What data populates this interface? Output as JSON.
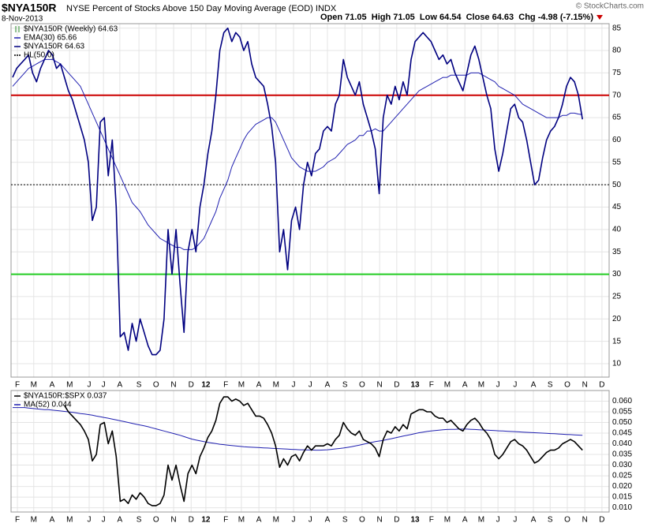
{
  "header": {
    "symbol": "$NYA150R",
    "description": "NYSE Percent of Stocks Above 150 Day Moving Average (EOD) INDX",
    "date": "8-Nov-2013",
    "quote": "Open 71.05  High 71.05  Low 64.54  Close 64.63  Chg -4.98 (-7.15%)",
    "credit": "© StockCharts.com"
  },
  "chart_data": [
    {
      "type": "line",
      "legend_header": "$NYA150R (Weekly) 64.63",
      "legend": "upper left",
      "grid": true,
      "xlim": [
        -0.4,
        149.7
      ],
      "xticks": [
        {
          "value": 1.2,
          "label": "F"
        },
        {
          "value": 5.3,
          "label": "M"
        },
        {
          "value": 9.9,
          "label": "A"
        },
        {
          "value": 14.3,
          "label": "M"
        },
        {
          "value": 19.2,
          "label": "J"
        },
        {
          "value": 22.8,
          "label": "J"
        },
        {
          "value": 26.9,
          "label": "A"
        },
        {
          "value": 31.7,
          "label": "S"
        },
        {
          "value": 36,
          "label": "O"
        },
        {
          "value": 40.4,
          "label": "N"
        },
        {
          "value": 44.8,
          "label": "D"
        },
        {
          "value": 48.5,
          "label": "12"
        },
        {
          "value": 53.5,
          "label": "F"
        },
        {
          "value": 57.4,
          "label": "M"
        },
        {
          "value": 61.8,
          "label": "A"
        },
        {
          "value": 66.1,
          "label": "M"
        },
        {
          "value": 70.5,
          "label": "J"
        },
        {
          "value": 74.7,
          "label": "J"
        },
        {
          "value": 79,
          "label": "A"
        },
        {
          "value": 83.4,
          "label": "S"
        },
        {
          "value": 87.7,
          "label": "O"
        },
        {
          "value": 92.1,
          "label": "N"
        },
        {
          "value": 96.4,
          "label": "D"
        },
        {
          "value": 101,
          "label": "13"
        },
        {
          "value": 105.1,
          "label": "F"
        },
        {
          "value": 109.1,
          "label": "M"
        },
        {
          "value": 113.5,
          "label": "A"
        },
        {
          "value": 117.6,
          "label": "M"
        },
        {
          "value": 121.8,
          "label": "J"
        },
        {
          "value": 126.1,
          "label": "J"
        },
        {
          "value": 130.7,
          "label": "A"
        },
        {
          "value": 134.9,
          "label": "S"
        },
        {
          "value": 139.2,
          "label": "O"
        },
        {
          "value": 143.6,
          "label": "N"
        },
        {
          "value": 147.9,
          "label": "D"
        }
      ],
      "ylim": [
        7,
        86
      ],
      "yticks": [
        10,
        15,
        20,
        25,
        30,
        35,
        40,
        45,
        50,
        55,
        60,
        65,
        70,
        75,
        80,
        85
      ],
      "hlines": [
        {
          "value": 70,
          "color": "#cc0000"
        },
        {
          "name": "HL(50.0)",
          "value": 50,
          "color": "#000000"
        },
        {
          "value": 30,
          "color": "#22cc22"
        }
      ],
      "series": [
        {
          "name": "$NYA150R 64.63",
          "color": "#000080",
          "values": [
            74,
            76,
            77,
            78,
            79,
            75,
            73,
            76,
            78,
            80,
            79,
            76,
            77,
            74,
            71,
            69,
            66,
            63,
            60,
            55,
            42,
            45,
            64,
            65,
            52,
            60,
            45,
            16,
            17,
            13,
            19,
            15,
            20,
            17,
            14,
            12,
            12,
            13,
            20,
            40,
            30,
            40,
            28,
            17,
            35,
            40,
            35,
            45,
            50,
            57,
            62,
            70,
            80,
            84,
            85,
            82,
            84,
            83,
            80,
            82,
            77,
            74,
            73,
            72,
            68,
            63,
            55,
            35,
            40,
            31,
            42,
            45,
            40,
            50,
            55,
            52,
            57,
            58,
            62,
            63,
            62,
            68,
            70,
            78,
            74,
            72,
            70,
            73,
            68,
            65,
            62,
            58,
            48,
            65,
            70,
            68,
            72,
            69,
            73,
            70,
            78,
            82,
            83,
            84,
            83,
            82,
            80,
            78,
            79,
            77,
            78,
            75,
            73,
            71,
            75,
            79,
            81,
            78,
            74,
            70,
            67,
            58,
            53,
            57,
            62,
            67,
            68,
            65,
            64,
            60,
            55,
            50,
            51,
            56,
            60,
            62,
            63,
            65,
            68,
            72,
            74,
            73,
            70,
            64.63
          ]
        },
        {
          "name": "EMA(30) 65.66",
          "color": "#2020b0",
          "values": [
            72,
            73,
            74,
            75,
            76,
            76.5,
            77,
            77.5,
            78,
            78,
            78,
            77.5,
            77,
            76,
            75,
            74,
            73,
            72,
            70,
            68,
            66,
            64,
            62,
            60,
            58,
            56,
            54,
            52,
            50,
            48,
            46,
            45,
            44,
            42.5,
            41,
            40,
            39,
            38,
            37.5,
            37,
            36.5,
            36,
            36,
            35.5,
            35.5,
            35.5,
            36,
            37,
            38,
            40,
            42,
            44,
            47,
            49,
            51,
            54,
            56,
            58,
            60,
            61.5,
            62.5,
            63.5,
            64,
            64.5,
            65,
            65,
            64,
            62,
            60,
            58,
            56,
            55,
            54,
            53.5,
            53,
            53,
            53,
            53.5,
            54,
            55,
            55.5,
            56,
            57,
            58,
            59,
            59.5,
            60,
            61,
            61,
            62,
            62,
            62.5,
            62,
            62,
            63,
            64,
            65,
            66,
            67,
            68,
            69,
            70,
            71,
            71.5,
            72,
            72.5,
            73,
            73.5,
            74,
            74,
            74.5,
            74.5,
            74.5,
            74.5,
            74.5,
            75,
            75,
            75,
            74.5,
            74,
            73.5,
            73,
            72,
            71.5,
            71,
            70.5,
            70,
            69,
            68,
            67.5,
            67,
            66.5,
            66,
            65.5,
            65,
            65,
            65,
            65,
            65.5,
            65.5,
            66,
            66,
            65.8,
            65.66
          ]
        }
      ]
    },
    {
      "type": "line",
      "legend": "upper left",
      "grid": true,
      "xlim": [
        -0.4,
        149.7
      ],
      "xticks": [
        {
          "value": 1.2,
          "label": "F"
        },
        {
          "value": 5.3,
          "label": "M"
        },
        {
          "value": 9.9,
          "label": "A"
        },
        {
          "value": 14.3,
          "label": "M"
        },
        {
          "value": 19.2,
          "label": "J"
        },
        {
          "value": 22.8,
          "label": "J"
        },
        {
          "value": 26.9,
          "label": "A"
        },
        {
          "value": 31.7,
          "label": "S"
        },
        {
          "value": 36,
          "label": "O"
        },
        {
          "value": 40.4,
          "label": "N"
        },
        {
          "value": 44.8,
          "label": "D"
        },
        {
          "value": 48.5,
          "label": "12"
        },
        {
          "value": 53.5,
          "label": "F"
        },
        {
          "value": 57.4,
          "label": "M"
        },
        {
          "value": 61.8,
          "label": "A"
        },
        {
          "value": 66.1,
          "label": "M"
        },
        {
          "value": 70.5,
          "label": "J"
        },
        {
          "value": 74.7,
          "label": "J"
        },
        {
          "value": 79,
          "label": "A"
        },
        {
          "value": 83.4,
          "label": "S"
        },
        {
          "value": 87.7,
          "label": "O"
        },
        {
          "value": 92.1,
          "label": "N"
        },
        {
          "value": 96.4,
          "label": "D"
        },
        {
          "value": 101,
          "label": "13"
        },
        {
          "value": 105.1,
          "label": "F"
        },
        {
          "value": 109.1,
          "label": "M"
        },
        {
          "value": 113.5,
          "label": "A"
        },
        {
          "value": 117.6,
          "label": "M"
        },
        {
          "value": 121.8,
          "label": "J"
        },
        {
          "value": 126.1,
          "label": "J"
        },
        {
          "value": 130.7,
          "label": "A"
        },
        {
          "value": 134.9,
          "label": "S"
        },
        {
          "value": 139.2,
          "label": "O"
        },
        {
          "value": 143.6,
          "label": "N"
        },
        {
          "value": 147.9,
          "label": "D"
        }
      ],
      "ylim": [
        0.008,
        0.065
      ],
      "yticks": [
        {
          "value": 0.01,
          "label": "0.010"
        },
        {
          "value": 0.015,
          "label": "0.015"
        },
        {
          "value": 0.02,
          "label": "0.020"
        },
        {
          "value": 0.025,
          "label": "0.025"
        },
        {
          "value": 0.03,
          "label": "0.030"
        },
        {
          "value": 0.035,
          "label": "0.035"
        },
        {
          "value": 0.04,
          "label": "0.040"
        },
        {
          "value": 0.045,
          "label": "0.045"
        },
        {
          "value": 0.05,
          "label": "0.050"
        },
        {
          "value": 0.055,
          "label": "0.055"
        },
        {
          "value": 0.06,
          "label": "0.060"
        }
      ],
      "series": [
        {
          "name": "$NYA150R:$SPX 0.037",
          "color": "#000000",
          "values": [
            null,
            null,
            null,
            null,
            null,
            null,
            null,
            null,
            null,
            null,
            null,
            null,
            null,
            0.058,
            0.055,
            0.053,
            0.051,
            0.049,
            0.046,
            0.042,
            0.032,
            0.035,
            0.049,
            0.05,
            0.04,
            0.046,
            0.034,
            0.013,
            0.014,
            0.012,
            0.016,
            0.014,
            0.017,
            0.015,
            0.012,
            0.011,
            0.011,
            0.012,
            0.016,
            0.03,
            0.023,
            0.03,
            0.021,
            0.013,
            0.026,
            0.03,
            0.026,
            0.034,
            0.038,
            0.043,
            0.046,
            0.051,
            0.059,
            0.062,
            0.062,
            0.06,
            0.061,
            0.06,
            0.058,
            0.059,
            0.056,
            0.053,
            0.053,
            0.052,
            0.049,
            0.045,
            0.039,
            0.029,
            0.033,
            0.03,
            0.034,
            0.035,
            0.032,
            0.036,
            0.039,
            0.037,
            0.039,
            0.039,
            0.039,
            0.04,
            0.039,
            0.042,
            0.044,
            0.05,
            0.047,
            0.045,
            0.044,
            0.046,
            0.042,
            0.041,
            0.04,
            0.038,
            0.034,
            0.042,
            0.046,
            0.045,
            0.048,
            0.046,
            0.049,
            0.047,
            0.054,
            0.055,
            0.056,
            0.056,
            0.055,
            0.055,
            0.053,
            0.052,
            0.052,
            0.05,
            0.051,
            0.049,
            0.047,
            0.046,
            0.049,
            0.051,
            0.052,
            0.05,
            0.047,
            0.045,
            0.042,
            0.035,
            0.033,
            0.035,
            0.038,
            0.041,
            0.042,
            0.04,
            0.039,
            0.037,
            0.034,
            0.031,
            0.032,
            0.034,
            0.036,
            0.037,
            0.037,
            0.038,
            0.04,
            0.041,
            0.042,
            0.041,
            0.039,
            0.037
          ]
        },
        {
          "name": "MA(52) 0.044",
          "color": "#2020b0",
          "values": [
            0.057,
            0.057,
            0.057,
            0.057,
            0.0568,
            0.0566,
            0.0564,
            0.0562,
            0.056,
            0.056,
            0.0558,
            0.0556,
            0.0554,
            0.0552,
            0.055,
            0.0548,
            0.0545,
            0.0542,
            0.054,
            0.0537,
            0.0534,
            0.053,
            0.0527,
            0.0523,
            0.052,
            0.0516,
            0.0512,
            0.0508,
            0.0504,
            0.05,
            0.0496,
            0.0492,
            0.0488,
            0.0484,
            0.048,
            0.0475,
            0.047,
            0.0465,
            0.046,
            0.0455,
            0.045,
            0.0445,
            0.044,
            0.0434,
            0.0428,
            0.0422,
            0.0418,
            0.0414,
            0.041,
            0.0407,
            0.0404,
            0.0401,
            0.0398,
            0.0396,
            0.0394,
            0.0392,
            0.039,
            0.0388,
            0.0386,
            0.0385,
            0.0384,
            0.0383,
            0.0382,
            0.0381,
            0.038,
            0.0379,
            0.0378,
            0.0377,
            0.0376,
            0.0375,
            0.0374,
            0.0373,
            0.0372,
            0.0372,
            0.0371,
            0.0371,
            0.037,
            0.037,
            0.0371,
            0.0372,
            0.0374,
            0.0376,
            0.0378,
            0.038,
            0.0383,
            0.0386,
            0.039,
            0.0394,
            0.0398,
            0.0402,
            0.0406,
            0.041,
            0.0413,
            0.0416,
            0.042,
            0.0424,
            0.0428,
            0.0432,
            0.0436,
            0.044,
            0.0444,
            0.0448,
            0.0452,
            0.0455,
            0.0458,
            0.046,
            0.0462,
            0.0464,
            0.0466,
            0.0467,
            0.0468,
            0.0468,
            0.0469,
            0.0469,
            0.0469,
            0.0468,
            0.0467,
            0.0466,
            0.0465,
            0.0464,
            0.0463,
            0.0462,
            0.0461,
            0.046,
            0.0459,
            0.0458,
            0.0457,
            0.0456,
            0.0455,
            0.0454,
            0.0453,
            0.0452,
            0.0451,
            0.045,
            0.0449,
            0.0448,
            0.0447,
            0.0446,
            0.0445,
            0.0444,
            0.0443,
            0.0442,
            0.0441,
            0.044
          ]
        }
      ]
    }
  ]
}
